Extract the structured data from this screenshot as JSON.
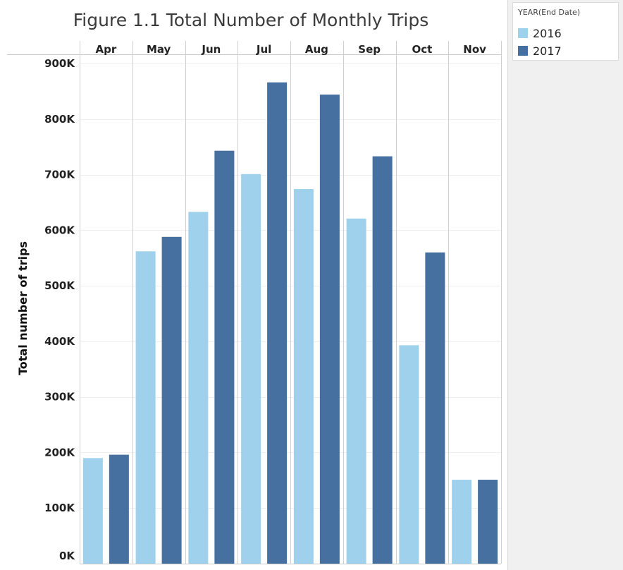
{
  "chart_data": {
    "type": "bar",
    "title": "Figure 1.1 Total Number of Monthly Trips",
    "ylabel": "Total number of trips",
    "xlabel": "",
    "categories": [
      "Apr",
      "May",
      "Jun",
      "Jul",
      "Aug",
      "Sep",
      "Oct",
      "Nov"
    ],
    "y_ticks": [
      "0K",
      "100K",
      "200K",
      "300K",
      "400K",
      "500K",
      "600K",
      "700K",
      "800K",
      "900K"
    ],
    "ylim": [
      0,
      900000
    ],
    "grid": true,
    "legend_position": "right",
    "legend_title": "YEAR(End Date)",
    "series": [
      {
        "name": "2016",
        "color": "#a0d1ec",
        "values": [
          190000,
          562000,
          633000,
          701000,
          674000,
          621000,
          393000,
          151000
        ]
      },
      {
        "name": "2017",
        "color": "#4670a0",
        "values": [
          196000,
          588000,
          743000,
          866000,
          844000,
          733000,
          560000,
          151000
        ]
      }
    ]
  }
}
